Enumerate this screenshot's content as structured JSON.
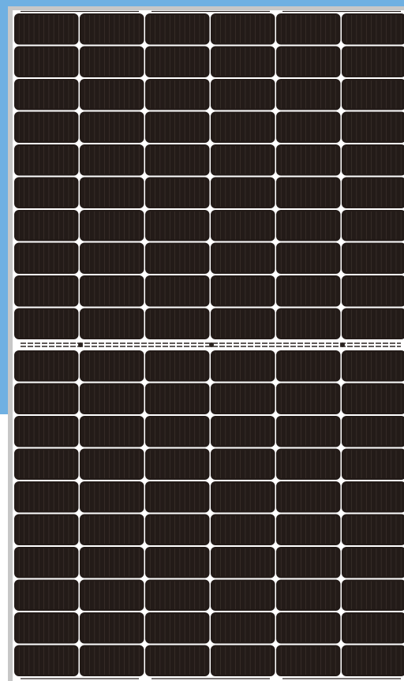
{
  "image": {
    "subject": "solar-panel",
    "cell_layout": {
      "columns": 6,
      "rows_per_half": 10,
      "halves": 2,
      "busbar_groups": 3
    },
    "colors": {
      "background_blue": "#6fb0e2",
      "frame": "#c7c7c7",
      "cell_fill": "#231b18",
      "cell_finger_line": "#3a302b",
      "gap_white": "#ffffff",
      "busbar_stripe": "#2a2320"
    }
  }
}
